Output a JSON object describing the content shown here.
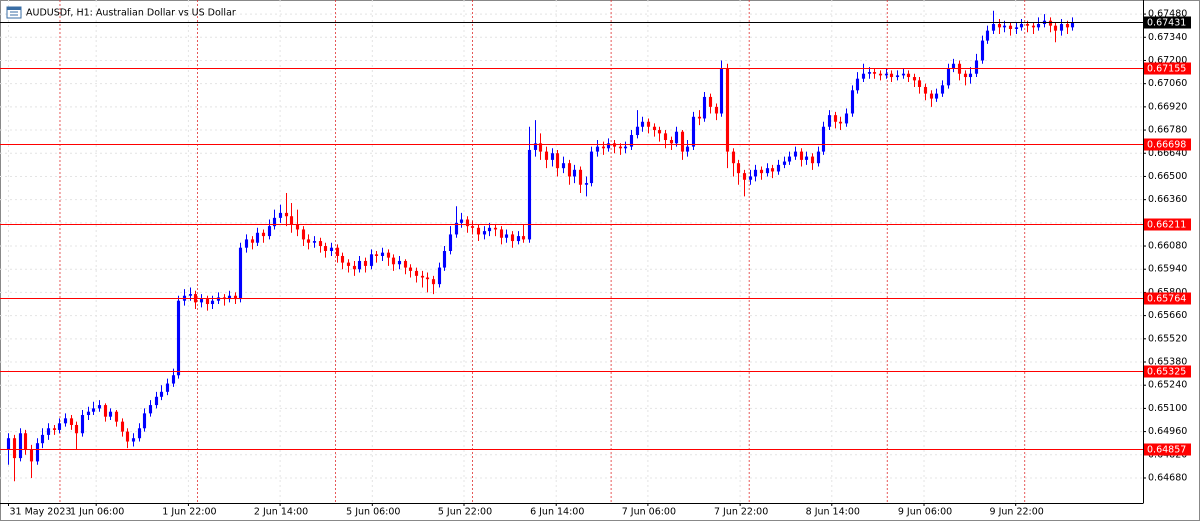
{
  "chart_data": {
    "type": "candlestick",
    "title": "AUDUSDf, H1:  Australian Dollar vs US Dollar",
    "up_color": "#0000ff",
    "down_color": "#ff0000",
    "grid": true,
    "xlim": [
      -1.5,
      200.5
    ],
    "xticks": [
      {
        "value": 0,
        "label": "31 May 2023"
      },
      {
        "value": 15.5,
        "label": "1 Jun 06:00"
      },
      {
        "value": 31.8,
        "label": "1 Jun 22:00"
      },
      {
        "value": 48,
        "label": "2 Jun 14:00"
      },
      {
        "value": 64.3,
        "label": "5 Jun 06:00"
      },
      {
        "value": 80.5,
        "label": "5 Jun 22:00"
      },
      {
        "value": 96.8,
        "label": "6 Jun 14:00"
      },
      {
        "value": 113,
        "label": "7 Jun 06:00"
      },
      {
        "value": 129.3,
        "label": "7 Jun 22:00"
      },
      {
        "value": 145.5,
        "label": "8 Jun 14:00"
      },
      {
        "value": 161.8,
        "label": "9 Jun 06:00"
      },
      {
        "value": 178,
        "label": "9 Jun 22:00"
      }
    ],
    "day_separators": [
      9.1,
      33.4,
      57.8,
      82,
      106.5,
      130.9,
      155.3,
      179.6
    ],
    "ylim": [
      0.64529,
      0.67565
    ],
    "yticks": [
      {
        "value": 0.6468,
        "label": "0.64680"
      },
      {
        "value": 0.6482,
        "label": "0.64820"
      },
      {
        "value": 0.6496,
        "label": "0.64960"
      },
      {
        "value": 0.651,
        "label": "0.65100"
      },
      {
        "value": 0.6524,
        "label": "0.65240"
      },
      {
        "value": 0.6538,
        "label": "0.65380"
      },
      {
        "value": 0.6552,
        "label": "0.65520"
      },
      {
        "value": 0.6566,
        "label": "0.65660"
      },
      {
        "value": 0.658,
        "label": "0.65800"
      },
      {
        "value": 0.6594,
        "label": "0.65940"
      },
      {
        "value": 0.6608,
        "label": "0.66080"
      },
      {
        "value": 0.6622,
        "label": "0.66220"
      },
      {
        "value": 0.6636,
        "label": "0.66360"
      },
      {
        "value": 0.665,
        "label": "0.66500"
      },
      {
        "value": 0.6664,
        "label": "0.66640"
      },
      {
        "value": 0.6678,
        "label": "0.66780"
      },
      {
        "value": 0.6692,
        "label": "0.66920"
      },
      {
        "value": 0.6706,
        "label": "0.67060"
      },
      {
        "value": 0.672,
        "label": "0.67200"
      },
      {
        "value": 0.6734,
        "label": "0.67340"
      },
      {
        "value": 0.6748,
        "label": "0.67480"
      }
    ],
    "levels": [
      {
        "value": 0.67155,
        "color": "#ff0000"
      },
      {
        "value": 0.66698,
        "color": "#ff0000"
      },
      {
        "value": 0.66211,
        "color": "#ff0000"
      },
      {
        "value": 0.65764,
        "color": "#ff0000"
      },
      {
        "value": 0.65325,
        "color": "#ff0000"
      },
      {
        "value": 0.64857,
        "color": "#ff0000"
      }
    ],
    "current_price": {
      "value": 0.67431,
      "color": "#000000"
    },
    "candles": [
      [
        0.6485,
        0.6495,
        0.6476,
        0.6492
      ],
      [
        0.6492,
        0.6494,
        0.6466,
        0.648
      ],
      [
        0.648,
        0.6498,
        0.6478,
        0.6495
      ],
      [
        0.6495,
        0.6497,
        0.6482,
        0.6485
      ],
      [
        0.6485,
        0.6488,
        0.6468,
        0.6478
      ],
      [
        0.6478,
        0.6492,
        0.6476,
        0.6489
      ],
      [
        0.6489,
        0.6498,
        0.6486,
        0.6494
      ],
      [
        0.6494,
        0.6501,
        0.6491,
        0.6498
      ],
      [
        0.6498,
        0.65,
        0.6494,
        0.6497
      ],
      [
        0.6497,
        0.6504,
        0.6495,
        0.6501
      ],
      [
        0.6501,
        0.6507,
        0.6499,
        0.6504
      ],
      [
        0.6504,
        0.6506,
        0.6497,
        0.65
      ],
      [
        0.65,
        0.6502,
        0.6485,
        0.6495
      ],
      [
        0.6495,
        0.6509,
        0.6493,
        0.6506
      ],
      [
        0.6506,
        0.6511,
        0.6503,
        0.6508
      ],
      [
        0.6508,
        0.6514,
        0.6506,
        0.651
      ],
      [
        0.651,
        0.6515,
        0.6508,
        0.6512
      ],
      [
        0.6512,
        0.6513,
        0.6502,
        0.6505
      ],
      [
        0.6505,
        0.651,
        0.6503,
        0.6508
      ],
      [
        0.6508,
        0.6509,
        0.6499,
        0.6502
      ],
      [
        0.6502,
        0.6504,
        0.6493,
        0.6496
      ],
      [
        0.6496,
        0.6498,
        0.6486,
        0.649
      ],
      [
        0.649,
        0.6495,
        0.6487,
        0.6492
      ],
      [
        0.6492,
        0.6501,
        0.649,
        0.6498
      ],
      [
        0.6498,
        0.651,
        0.6496,
        0.6507
      ],
      [
        0.6507,
        0.6515,
        0.6505,
        0.6512
      ],
      [
        0.6512,
        0.652,
        0.651,
        0.6517
      ],
      [
        0.6517,
        0.6524,
        0.6515,
        0.652
      ],
      [
        0.652,
        0.6528,
        0.6518,
        0.6525
      ],
      [
        0.6525,
        0.6534,
        0.6523,
        0.653
      ],
      [
        0.653,
        0.6578,
        0.6528,
        0.6575
      ],
      [
        0.6575,
        0.6582,
        0.6572,
        0.6578
      ],
      [
        0.6578,
        0.6583,
        0.6575,
        0.6579
      ],
      [
        0.6579,
        0.6581,
        0.657,
        0.6574
      ],
      [
        0.6574,
        0.6579,
        0.6571,
        0.6576
      ],
      [
        0.6576,
        0.6578,
        0.6569,
        0.6573
      ],
      [
        0.6573,
        0.6578,
        0.657,
        0.6575
      ],
      [
        0.6575,
        0.658,
        0.6573,
        0.6577
      ],
      [
        0.6577,
        0.6579,
        0.6572,
        0.6576
      ],
      [
        0.6576,
        0.6581,
        0.6574,
        0.6578
      ],
      [
        0.6578,
        0.658,
        0.6573,
        0.6576
      ],
      [
        0.6576,
        0.661,
        0.6574,
        0.6607
      ],
      [
        0.6607,
        0.6615,
        0.6604,
        0.6612
      ],
      [
        0.6612,
        0.6614,
        0.6606,
        0.661
      ],
      [
        0.661,
        0.6619,
        0.6608,
        0.6616
      ],
      [
        0.6616,
        0.6618,
        0.661,
        0.6614
      ],
      [
        0.6614,
        0.6624,
        0.6612,
        0.662
      ],
      [
        0.662,
        0.663,
        0.6618,
        0.6625
      ],
      [
        0.6625,
        0.6633,
        0.6622,
        0.6628
      ],
      [
        0.6628,
        0.664,
        0.662,
        0.6626
      ],
      [
        0.6626,
        0.6634,
        0.6616,
        0.6621
      ],
      [
        0.6621,
        0.663,
        0.6614,
        0.6618
      ],
      [
        0.6618,
        0.662,
        0.6608,
        0.6612
      ],
      [
        0.6612,
        0.6615,
        0.6606,
        0.661
      ],
      [
        0.661,
        0.6614,
        0.6607,
        0.6611
      ],
      [
        0.6611,
        0.6613,
        0.6604,
        0.6608
      ],
      [
        0.6608,
        0.661,
        0.6601,
        0.6605
      ],
      [
        0.6605,
        0.661,
        0.6602,
        0.6607
      ],
      [
        0.6607,
        0.6609,
        0.6598,
        0.6602
      ],
      [
        0.6602,
        0.6604,
        0.6594,
        0.6598
      ],
      [
        0.6598,
        0.66,
        0.6592,
        0.6596
      ],
      [
        0.6596,
        0.6599,
        0.659,
        0.6594
      ],
      [
        0.6594,
        0.6602,
        0.6592,
        0.6599
      ],
      [
        0.6599,
        0.6601,
        0.6592,
        0.6596
      ],
      [
        0.6596,
        0.6606,
        0.6594,
        0.6603
      ],
      [
        0.6603,
        0.6605,
        0.6598,
        0.6602
      ],
      [
        0.6602,
        0.6607,
        0.6599,
        0.6604
      ],
      [
        0.6604,
        0.6606,
        0.6596,
        0.6601
      ],
      [
        0.6601,
        0.6603,
        0.6593,
        0.6597
      ],
      [
        0.6597,
        0.6602,
        0.6594,
        0.6599
      ],
      [
        0.6599,
        0.66,
        0.6591,
        0.6595
      ],
      [
        0.6595,
        0.6597,
        0.6589,
        0.6593
      ],
      [
        0.6593,
        0.6595,
        0.6586,
        0.659
      ],
      [
        0.659,
        0.6593,
        0.6583,
        0.6589
      ],
      [
        0.6589,
        0.6592,
        0.658,
        0.6588
      ],
      [
        0.6588,
        0.659,
        0.6579,
        0.6585
      ],
      [
        0.6585,
        0.6598,
        0.6583,
        0.6595
      ],
      [
        0.6595,
        0.6608,
        0.6593,
        0.6605
      ],
      [
        0.6605,
        0.662,
        0.6603,
        0.6615
      ],
      [
        0.6615,
        0.6632,
        0.6613,
        0.6622
      ],
      [
        0.6622,
        0.6628,
        0.6619,
        0.6624
      ],
      [
        0.6624,
        0.6626,
        0.6616,
        0.662
      ],
      [
        0.662,
        0.6623,
        0.6615,
        0.6619
      ],
      [
        0.6619,
        0.6621,
        0.6611,
        0.6615
      ],
      [
        0.6615,
        0.662,
        0.6612,
        0.6617
      ],
      [
        0.6617,
        0.6622,
        0.6614,
        0.6619
      ],
      [
        0.6619,
        0.6621,
        0.6614,
        0.6618
      ],
      [
        0.6618,
        0.662,
        0.6609,
        0.6613
      ],
      [
        0.6613,
        0.6618,
        0.661,
        0.6615
      ],
      [
        0.6615,
        0.6617,
        0.6607,
        0.6611
      ],
      [
        0.6611,
        0.6617,
        0.6609,
        0.6614
      ],
      [
        0.6614,
        0.6621,
        0.661,
        0.6612
      ],
      [
        0.6612,
        0.668,
        0.661,
        0.6666
      ],
      [
        0.6666,
        0.6684,
        0.6662,
        0.667
      ],
      [
        0.667,
        0.6676,
        0.666,
        0.6665
      ],
      [
        0.6665,
        0.6668,
        0.6655,
        0.666
      ],
      [
        0.666,
        0.6667,
        0.6656,
        0.6664
      ],
      [
        0.6664,
        0.6666,
        0.665,
        0.6655
      ],
      [
        0.6655,
        0.6662,
        0.6652,
        0.6658
      ],
      [
        0.6658,
        0.666,
        0.6645,
        0.665
      ],
      [
        0.665,
        0.6657,
        0.6646,
        0.6654
      ],
      [
        0.6654,
        0.6656,
        0.664,
        0.6645
      ],
      [
        0.6645,
        0.665,
        0.6638,
        0.6646
      ],
      [
        0.6646,
        0.6668,
        0.6644,
        0.6665
      ],
      [
        0.6665,
        0.6672,
        0.6662,
        0.6668
      ],
      [
        0.6668,
        0.6671,
        0.6663,
        0.6667
      ],
      [
        0.6667,
        0.6673,
        0.6665,
        0.667
      ],
      [
        0.667,
        0.6672,
        0.6664,
        0.6668
      ],
      [
        0.6668,
        0.667,
        0.6663,
        0.6667
      ],
      [
        0.6667,
        0.6671,
        0.6664,
        0.6668
      ],
      [
        0.6668,
        0.6678,
        0.6666,
        0.6675
      ],
      [
        0.6675,
        0.669,
        0.6673,
        0.668
      ],
      [
        0.668,
        0.6686,
        0.6677,
        0.6683
      ],
      [
        0.6683,
        0.6685,
        0.6676,
        0.668
      ],
      [
        0.668,
        0.6682,
        0.6674,
        0.6678
      ],
      [
        0.6678,
        0.668,
        0.6671,
        0.6676
      ],
      [
        0.6676,
        0.6678,
        0.6667,
        0.6672
      ],
      [
        0.6672,
        0.6674,
        0.6666,
        0.667
      ],
      [
        0.667,
        0.668,
        0.6668,
        0.6677
      ],
      [
        0.6677,
        0.6678,
        0.666,
        0.6665
      ],
      [
        0.6665,
        0.6672,
        0.6662,
        0.6668
      ],
      [
        0.6668,
        0.6689,
        0.6666,
        0.6686
      ],
      [
        0.6686,
        0.669,
        0.6681,
        0.6685
      ],
      [
        0.6685,
        0.6701,
        0.6683,
        0.6698
      ],
      [
        0.6698,
        0.67,
        0.6688,
        0.6692
      ],
      [
        0.6692,
        0.6694,
        0.6684,
        0.6688
      ],
      [
        0.6688,
        0.672,
        0.6686,
        0.6715
      ],
      [
        0.6715,
        0.6718,
        0.6655,
        0.6665
      ],
      [
        0.6665,
        0.6667,
        0.665,
        0.6658
      ],
      [
        0.6658,
        0.666,
        0.6645,
        0.6652
      ],
      [
        0.6652,
        0.6654,
        0.6638,
        0.6648
      ],
      [
        0.6648,
        0.6654,
        0.6645,
        0.665
      ],
      [
        0.665,
        0.6657,
        0.6647,
        0.6654
      ],
      [
        0.6654,
        0.6656,
        0.6648,
        0.6652
      ],
      [
        0.6652,
        0.6658,
        0.665,
        0.6655
      ],
      [
        0.6655,
        0.6657,
        0.6649,
        0.6653
      ],
      [
        0.6653,
        0.666,
        0.6651,
        0.6657
      ],
      [
        0.6657,
        0.6662,
        0.6655,
        0.6659
      ],
      [
        0.6659,
        0.6665,
        0.6657,
        0.6662
      ],
      [
        0.6662,
        0.6668,
        0.666,
        0.6665
      ],
      [
        0.6665,
        0.6667,
        0.6656,
        0.666
      ],
      [
        0.666,
        0.6665,
        0.6657,
        0.6662
      ],
      [
        0.6662,
        0.6664,
        0.6654,
        0.6658
      ],
      [
        0.6658,
        0.6668,
        0.6656,
        0.6665
      ],
      [
        0.6665,
        0.6683,
        0.6663,
        0.668
      ],
      [
        0.668,
        0.669,
        0.6678,
        0.6687
      ],
      [
        0.6687,
        0.6689,
        0.6679,
        0.6683
      ],
      [
        0.6683,
        0.6686,
        0.6678,
        0.6682
      ],
      [
        0.6682,
        0.6691,
        0.668,
        0.6688
      ],
      [
        0.6688,
        0.6705,
        0.6686,
        0.6702
      ],
      [
        0.6702,
        0.6713,
        0.67,
        0.6709
      ],
      [
        0.6709,
        0.6718,
        0.6707,
        0.6712
      ],
      [
        0.6712,
        0.6716,
        0.6709,
        0.6713
      ],
      [
        0.6713,
        0.6715,
        0.6709,
        0.6712
      ],
      [
        0.6712,
        0.6714,
        0.6708,
        0.6711
      ],
      [
        0.6711,
        0.6715,
        0.6709,
        0.6712
      ],
      [
        0.6712,
        0.6714,
        0.6707,
        0.671
      ],
      [
        0.671,
        0.6714,
        0.6708,
        0.6711
      ],
      [
        0.6711,
        0.6715,
        0.6709,
        0.6712
      ],
      [
        0.6712,
        0.6714,
        0.6707,
        0.671
      ],
      [
        0.671,
        0.6712,
        0.6704,
        0.6708
      ],
      [
        0.6708,
        0.671,
        0.67,
        0.6704
      ],
      [
        0.6704,
        0.6706,
        0.6696,
        0.67
      ],
      [
        0.67,
        0.6702,
        0.6692,
        0.6697
      ],
      [
        0.6697,
        0.6703,
        0.6695,
        0.67
      ],
      [
        0.67,
        0.6708,
        0.6698,
        0.6705
      ],
      [
        0.6705,
        0.6718,
        0.6703,
        0.6715
      ],
      [
        0.6715,
        0.6721,
        0.6713,
        0.6718
      ],
      [
        0.6718,
        0.672,
        0.6708,
        0.6712
      ],
      [
        0.6712,
        0.6714,
        0.6705,
        0.671
      ],
      [
        0.671,
        0.6716,
        0.6706,
        0.6712
      ],
      [
        0.6712,
        0.6724,
        0.671,
        0.672
      ],
      [
        0.672,
        0.6735,
        0.6718,
        0.6732
      ],
      [
        0.6732,
        0.6741,
        0.673,
        0.6738
      ],
      [
        0.6738,
        0.675,
        0.6736,
        0.6742
      ],
      [
        0.6742,
        0.6745,
        0.6736,
        0.674
      ],
      [
        0.674,
        0.6744,
        0.6737,
        0.6741
      ],
      [
        0.6741,
        0.6743,
        0.6735,
        0.6739
      ],
      [
        0.6739,
        0.6743,
        0.6736,
        0.674
      ],
      [
        0.674,
        0.6745,
        0.6738,
        0.6742
      ],
      [
        0.6742,
        0.6744,
        0.6737,
        0.6741
      ],
      [
        0.6741,
        0.6743,
        0.6736,
        0.674
      ],
      [
        0.674,
        0.6746,
        0.6738,
        0.6742
      ],
      [
        0.6742,
        0.6748,
        0.674,
        0.6744
      ],
      [
        0.6744,
        0.6746,
        0.6737,
        0.6741
      ],
      [
        0.6741,
        0.6743,
        0.6731,
        0.6738
      ],
      [
        0.6738,
        0.6745,
        0.6735,
        0.6742
      ],
      [
        0.6742,
        0.6744,
        0.6736,
        0.674
      ],
      [
        0.674,
        0.6746,
        0.6738,
        0.6743
      ]
    ]
  }
}
